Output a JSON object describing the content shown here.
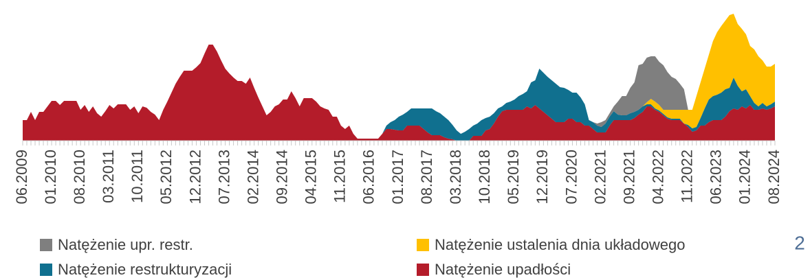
{
  "chart_data": {
    "type": "area",
    "stacked": true,
    "categories": [
      "06.2009",
      null,
      null,
      null,
      null,
      null,
      null,
      "01.2010",
      null,
      null,
      null,
      null,
      null,
      null,
      "08.2010",
      null,
      null,
      null,
      null,
      null,
      null,
      "03.2011",
      null,
      null,
      null,
      null,
      null,
      null,
      "10.2011",
      null,
      null,
      null,
      null,
      null,
      null,
      "05.2012",
      null,
      null,
      null,
      null,
      null,
      null,
      "12.2012",
      null,
      null,
      null,
      null,
      null,
      null,
      "07.2013",
      null,
      null,
      null,
      null,
      null,
      null,
      "02.2014",
      null,
      null,
      null,
      null,
      null,
      null,
      "09.2014",
      null,
      null,
      null,
      null,
      null,
      null,
      "04.2015",
      null,
      null,
      null,
      null,
      null,
      null,
      "11.2015",
      null,
      null,
      null,
      null,
      null,
      null,
      "06.2016",
      null,
      null,
      null,
      null,
      null,
      null,
      "01.2017",
      null,
      null,
      null,
      null,
      null,
      null,
      "08.2017",
      null,
      null,
      null,
      null,
      null,
      null,
      "03.2018",
      null,
      null,
      null,
      null,
      null,
      null,
      "10.2018",
      null,
      null,
      null,
      null,
      null,
      null,
      "05.2019",
      null,
      null,
      null,
      null,
      null,
      null,
      "12.2019",
      null,
      null,
      null,
      null,
      null,
      null,
      "07.2020",
      null,
      null,
      null,
      null,
      null,
      null,
      "02.2021",
      null,
      null,
      null,
      null,
      null,
      null,
      "09.2021",
      null,
      null,
      null,
      null,
      null,
      null,
      "04.2022",
      null,
      null,
      null,
      null,
      null,
      null,
      "11.2022",
      null,
      null,
      null,
      null,
      null,
      null,
      "06.2023",
      null,
      null,
      null,
      null,
      null,
      null,
      "01.2024",
      null,
      null,
      null,
      null,
      null,
      null,
      "08.2024"
    ],
    "series": [
      {
        "name": "Natężenie upr. restr.",
        "color": "#7f7f7f",
        "values": [
          0,
          0,
          0,
          0,
          0,
          0,
          0,
          0,
          0,
          0,
          0,
          0,
          0,
          0,
          0,
          0,
          0,
          0,
          0,
          0,
          0,
          0,
          0,
          0,
          0,
          0,
          0,
          0,
          0,
          0,
          0,
          0,
          0,
          0,
          0,
          0,
          0,
          0,
          0,
          0,
          0,
          0,
          0,
          0,
          0,
          0,
          0,
          0,
          0,
          0,
          0,
          0,
          0,
          0,
          0,
          0,
          0,
          0,
          0,
          0,
          0,
          0,
          0,
          0,
          0,
          0,
          0,
          0,
          0,
          0,
          0,
          0,
          0,
          0,
          0,
          0,
          0,
          0,
          0,
          0,
          0,
          0,
          0,
          0,
          0,
          0,
          0,
          0,
          0,
          0,
          0,
          0,
          0,
          0,
          0,
          0,
          0,
          0,
          0,
          0,
          0,
          0,
          0,
          0,
          0,
          0,
          0,
          0,
          0,
          0,
          0,
          0,
          0,
          0,
          0,
          0,
          0,
          0,
          0,
          0,
          0,
          0,
          0,
          0,
          0,
          0,
          0,
          0,
          0,
          0,
          0,
          0,
          0,
          0,
          0,
          0,
          0,
          0,
          0,
          3,
          7,
          5,
          5,
          7,
          19,
          28,
          28,
          37,
          43,
          65,
          62,
          65,
          62,
          66,
          63,
          65,
          55,
          48,
          45,
          38,
          30,
          0,
          0,
          0,
          0,
          0,
          0,
          0,
          0,
          0,
          0,
          0,
          0,
          0,
          0,
          0,
          0,
          0,
          0,
          0,
          0,
          0,
          0
        ]
      },
      {
        "name": "Natężenie ustalenia dnia układowego",
        "color": "#ffc000",
        "values": [
          0,
          0,
          0,
          0,
          0,
          0,
          0,
          0,
          0,
          0,
          0,
          0,
          0,
          0,
          0,
          0,
          0,
          0,
          0,
          0,
          0,
          0,
          0,
          0,
          0,
          0,
          0,
          0,
          0,
          0,
          0,
          0,
          0,
          0,
          0,
          0,
          0,
          0,
          0,
          0,
          0,
          0,
          0,
          0,
          0,
          0,
          0,
          0,
          0,
          0,
          0,
          0,
          0,
          0,
          0,
          0,
          0,
          0,
          0,
          0,
          0,
          0,
          0,
          0,
          0,
          0,
          0,
          0,
          0,
          0,
          0,
          0,
          0,
          0,
          0,
          0,
          0,
          0,
          0,
          0,
          0,
          0,
          0,
          0,
          0,
          0,
          0,
          0,
          0,
          0,
          0,
          0,
          0,
          0,
          0,
          0,
          0,
          0,
          0,
          0,
          0,
          0,
          0,
          0,
          0,
          0,
          0,
          0,
          0,
          0,
          0,
          0,
          0,
          0,
          0,
          0,
          0,
          0,
          0,
          0,
          0,
          0,
          0,
          0,
          0,
          0,
          0,
          0,
          0,
          0,
          0,
          0,
          0,
          0,
          0,
          0,
          0,
          0,
          0,
          0,
          0,
          0,
          0,
          0,
          0,
          0,
          0,
          0,
          0,
          0,
          0,
          3,
          8,
          10,
          8,
          6,
          11,
          13,
          13,
          13,
          20,
          22,
          27,
          45,
          52,
          58,
          65,
          80,
          91,
          97,
          100,
          106,
          93,
          90,
          91,
          80,
          73,
          78,
          73,
          62,
          58,
          55,
          55
        ]
      },
      {
        "name": "Natężenie restrukturyzacji",
        "color": "#10708f",
        "values": [
          0,
          0,
          0,
          0,
          0,
          0,
          0,
          0,
          0,
          0,
          0,
          0,
          0,
          0,
          0,
          0,
          0,
          0,
          0,
          0,
          0,
          0,
          0,
          0,
          0,
          0,
          0,
          0,
          0,
          0,
          0,
          0,
          0,
          0,
          0,
          0,
          0,
          0,
          0,
          0,
          0,
          0,
          0,
          0,
          0,
          0,
          0,
          0,
          0,
          0,
          0,
          0,
          0,
          0,
          0,
          0,
          0,
          0,
          0,
          0,
          0,
          0,
          0,
          0,
          0,
          0,
          0,
          0,
          0,
          0,
          0,
          0,
          0,
          0,
          0,
          0,
          0,
          0,
          0,
          0,
          0,
          0,
          0,
          0,
          0,
          0,
          0,
          0,
          5,
          10,
          14,
          20,
          23,
          20,
          25,
          25,
          25,
          30,
          35,
          39,
          35,
          32,
          30,
          27,
          21,
          15,
          10,
          13,
          17,
          15,
          18,
          23,
          18,
          18,
          15,
          12,
          7,
          10,
          12,
          15,
          20,
          23,
          22,
          38,
          36,
          58,
          57,
          56,
          56,
          56,
          51,
          50,
          42,
          38,
          43,
          36,
          31,
          8,
          10,
          10,
          8,
          13,
          13,
          13,
          8,
          7,
          7,
          10,
          9,
          7,
          8,
          3,
          3,
          2,
          2,
          2,
          2,
          2,
          2,
          2,
          0,
          3,
          5,
          5,
          11,
          25,
          33,
          35,
          37,
          40,
          40,
          34,
          45,
          35,
          22,
          28,
          13,
          10,
          5,
          8,
          5,
          6,
          7
        ]
      },
      {
        "name": "Natężenie upadłości",
        "color": "#b41c2a",
        "values": [
          30,
          30,
          42,
          30,
          42,
          42,
          50,
          58,
          58,
          52,
          58,
          58,
          58,
          58,
          45,
          52,
          42,
          50,
          40,
          35,
          43,
          52,
          47,
          53,
          53,
          53,
          45,
          50,
          40,
          50,
          48,
          42,
          38,
          30,
          45,
          57,
          70,
          83,
          93,
          102,
          102,
          102,
          107,
          113,
          127,
          140,
          140,
          130,
          117,
          105,
          98,
          92,
          87,
          87,
          83,
          92,
          77,
          63,
          50,
          37,
          42,
          50,
          53,
          60,
          60,
          72,
          62,
          50,
          62,
          62,
          62,
          57,
          50,
          47,
          45,
          35,
          35,
          22,
          17,
          22,
          10,
          3,
          3,
          3,
          3,
          3,
          3,
          10,
          17,
          17,
          16,
          15,
          15,
          22,
          22,
          22,
          22,
          17,
          12,
          8,
          8,
          8,
          5,
          3,
          2,
          0,
          0,
          0,
          0,
          7,
          7,
          7,
          15,
          17,
          25,
          35,
          43,
          45,
          45,
          45,
          45,
          45,
          50,
          47,
          52,
          47,
          42,
          37,
          32,
          27,
          27,
          27,
          32,
          32,
          27,
          27,
          22,
          22,
          17,
          12,
          12,
          12,
          22,
          30,
          30,
          30,
          30,
          30,
          33,
          38,
          42,
          50,
          50,
          45,
          42,
          37,
          32,
          30,
          30,
          30,
          25,
          20,
          13,
          15,
          22,
          22,
          27,
          30,
          30,
          30,
          35,
          43,
          47,
          45,
          50,
          47,
          52,
          45,
          45,
          47,
          45,
          47,
          50
        ]
      }
    ],
    "ylim": [
      0,
      190
    ],
    "legend": "bottom"
  },
  "page_number": "2"
}
